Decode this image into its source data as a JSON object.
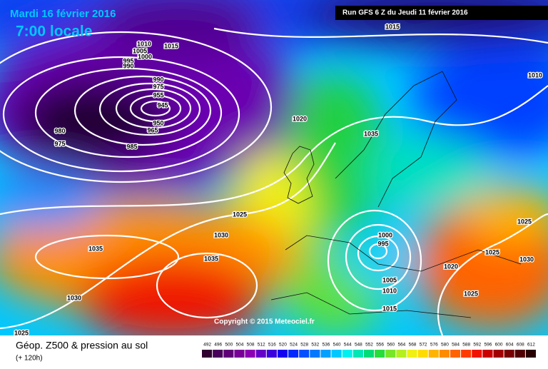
{
  "header": {
    "date": "Mardi 16 février 2016",
    "time": "7:00 locale",
    "run": "Run GFS 6 Z du Jeudi 11 février 2016"
  },
  "copyright": "Copyright © 2015 Meteociel.fr",
  "legend": {
    "title": "Géop. Z500 & pression au sol",
    "lead": "(+ 120h)"
  },
  "isobar_labels": [
    "1010",
    "1005",
    "1000",
    "995",
    "990",
    "1015",
    "990",
    "975",
    "955",
    "945",
    "950",
    "965",
    "980",
    "975",
    "985",
    "1020",
    "1035",
    "1015",
    "1010",
    "1025",
    "1030",
    "1035",
    "1035",
    "1030",
    "1025",
    "1000",
    "995",
    "1005",
    "1010",
    "1015",
    "1020",
    "1025",
    "1030",
    "1025",
    "1025"
  ],
  "colorbar": {
    "values": [
      492,
      496,
      500,
      504,
      508,
      512,
      516,
      520,
      524,
      528,
      532,
      536,
      540,
      544,
      548,
      552,
      556,
      560,
      564,
      568,
      572,
      576,
      580,
      584,
      588,
      592,
      596,
      600,
      604,
      608,
      612
    ],
    "colors": [
      "#300030",
      "#48005a",
      "#600078",
      "#780096",
      "#8c00b4",
      "#6400c8",
      "#3c00dc",
      "#1400f0",
      "#0028ff",
      "#0050ff",
      "#0078ff",
      "#00a0ff",
      "#00c8ff",
      "#00f0f0",
      "#00e6b4",
      "#00dc78",
      "#28dc3c",
      "#78e628",
      "#b4f01e",
      "#f0f014",
      "#ffdc00",
      "#ffb400",
      "#ff8c00",
      "#ff6400",
      "#ff3c00",
      "#f01400",
      "#c80000",
      "#a00000",
      "#780000",
      "#500000",
      "#280000"
    ]
  }
}
